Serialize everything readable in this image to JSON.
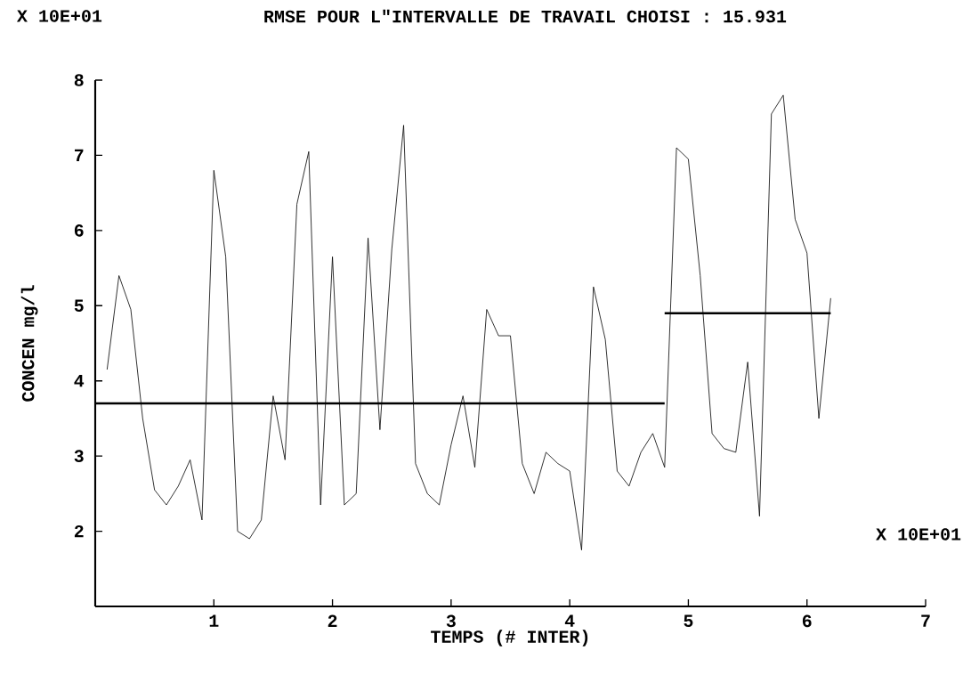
{
  "chart_data": {
    "type": "line",
    "title": "RMSE POUR L\"INTERVALLE DE TRAVAIL CHOISI :    15.931",
    "xlabel": "TEMPS (# INTER)",
    "ylabel": "CONCEN mg/l",
    "annotations": [
      "X 10E+01",
      "X 10E+01"
    ],
    "x": [
      0.1,
      0.2,
      0.3,
      0.4,
      0.5,
      0.6,
      0.7,
      0.8,
      0.9,
      1.0,
      1.1,
      1.2,
      1.3,
      1.4,
      1.5,
      1.6,
      1.7,
      1.8,
      1.9,
      2.0,
      2.1,
      2.2,
      2.3,
      2.4,
      2.5,
      2.6,
      2.7,
      2.8,
      2.9,
      3.0,
      3.1,
      3.2,
      3.3,
      3.4,
      3.5,
      3.6,
      3.7,
      3.8,
      3.9,
      4.0,
      4.1,
      4.2,
      4.3,
      4.4,
      4.5,
      4.6,
      4.7,
      4.8,
      4.9,
      5.0,
      5.1,
      5.2,
      5.3,
      5.4,
      5.5,
      5.6,
      5.7,
      5.8,
      5.9,
      6.0,
      6.1,
      6.2
    ],
    "series": [
      {
        "color": "#000000",
        "values": [
          4.15,
          5.4,
          4.95,
          3.5,
          2.55,
          2.35,
          2.6,
          2.95,
          2.15,
          6.8,
          5.65,
          2.0,
          1.9,
          2.15,
          3.8,
          2.95,
          6.35,
          7.05,
          2.35,
          5.65,
          2.35,
          2.5,
          5.9,
          3.35,
          5.75,
          7.4,
          2.9,
          2.5,
          2.35,
          3.15,
          3.8,
          2.85,
          4.95,
          4.6,
          4.6,
          2.9,
          2.5,
          3.05,
          2.9,
          2.8,
          1.75,
          5.25,
          4.55,
          2.8,
          2.6,
          3.05,
          3.3,
          2.85,
          7.1,
          6.95,
          5.4,
          3.3,
          3.1,
          3.05,
          4.25,
          2.2,
          7.55,
          7.8,
          6.15,
          5.7,
          3.5,
          5.1
        ]
      },
      {
        "type": "line",
        "color": "#000000",
        "x": [
          0,
          4.8
        ],
        "values": [
          3.7,
          3.7
        ]
      },
      {
        "type": "line",
        "color": "#000000",
        "x": [
          4.8,
          6.2
        ],
        "values": [
          4.9,
          4.9
        ]
      }
    ],
    "xlim": [
      0,
      7
    ],
    "xticks": [
      1,
      2,
      3,
      4,
      5,
      6,
      7
    ],
    "ylim": [
      1,
      8
    ],
    "yticks": [
      2,
      3,
      4,
      5,
      6,
      7,
      8
    ]
  }
}
